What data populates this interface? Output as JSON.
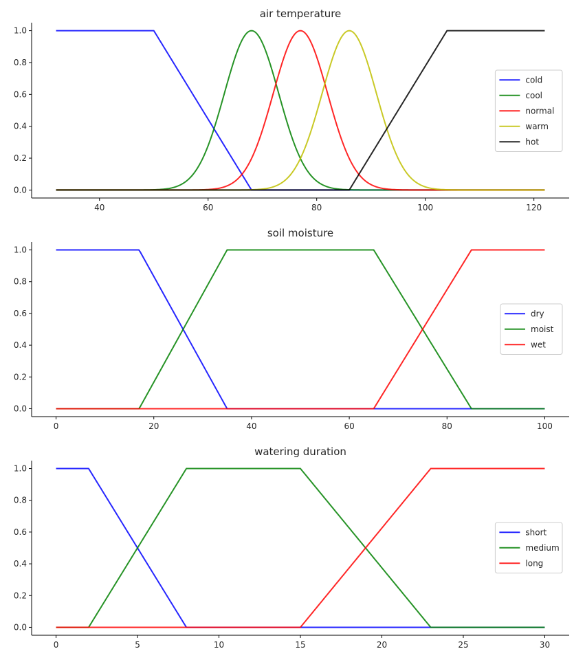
{
  "chart_data": [
    {
      "type": "line",
      "title": "air temperature",
      "xlabel": "",
      "ylabel": "",
      "xlim": [
        27.5,
        126.5
      ],
      "ylim": [
        -0.05,
        1.05
      ],
      "xticks": [
        40,
        60,
        80,
        100,
        120
      ],
      "yticks": [
        0.0,
        0.2,
        0.4,
        0.6,
        0.8,
        1.0
      ],
      "legend_position": "center-right",
      "series": [
        {
          "name": "cold",
          "color": "#0000ff",
          "shape": "trapezoid",
          "params": [
            32,
            32,
            50,
            68
          ],
          "domain": [
            32,
            122
          ]
        },
        {
          "name": "cool",
          "color": "#008000",
          "shape": "gaussian",
          "params": [
            68,
            5
          ],
          "domain": [
            32,
            122
          ]
        },
        {
          "name": "normal",
          "color": "#ff0000",
          "shape": "gaussian",
          "params": [
            77,
            5
          ],
          "domain": [
            32,
            122
          ]
        },
        {
          "name": "warm",
          "color": "#bfbf00",
          "shape": "gaussian",
          "params": [
            86,
            5
          ],
          "domain": [
            32,
            122
          ]
        },
        {
          "name": "hot",
          "color": "#000000",
          "shape": "trapezoid",
          "params": [
            86,
            104,
            122,
            122
          ],
          "domain": [
            32,
            122
          ]
        }
      ]
    },
    {
      "type": "line",
      "title": "soil moisture",
      "xlabel": "",
      "ylabel": "",
      "xlim": [
        -5,
        105
      ],
      "ylim": [
        -0.05,
        1.05
      ],
      "xticks": [
        0,
        20,
        40,
        60,
        80,
        100
      ],
      "yticks": [
        0.0,
        0.2,
        0.4,
        0.6,
        0.8,
        1.0
      ],
      "legend_position": "center-right",
      "series": [
        {
          "name": "dry",
          "color": "#0000ff",
          "shape": "trapezoid",
          "params": [
            0,
            0,
            17,
            35
          ],
          "domain": [
            0,
            100
          ]
        },
        {
          "name": "moist",
          "color": "#008000",
          "shape": "trapezoid",
          "params": [
            17,
            35,
            65,
            85
          ],
          "domain": [
            0,
            100
          ]
        },
        {
          "name": "wet",
          "color": "#ff0000",
          "shape": "trapezoid",
          "params": [
            65,
            85,
            100,
            100
          ],
          "domain": [
            0,
            100
          ]
        }
      ]
    },
    {
      "type": "line",
      "title": "watering duration",
      "xlabel": "",
      "ylabel": "",
      "xlim": [
        -1.5,
        31.5
      ],
      "ylim": [
        -0.05,
        1.05
      ],
      "xticks": [
        0,
        5,
        10,
        15,
        20,
        25,
        30
      ],
      "yticks": [
        0.0,
        0.2,
        0.4,
        0.6,
        0.8,
        1.0
      ],
      "legend_position": "center-right",
      "series": [
        {
          "name": "short",
          "color": "#0000ff",
          "shape": "trapezoid",
          "params": [
            0,
            0,
            2,
            8
          ],
          "domain": [
            0,
            30
          ]
        },
        {
          "name": "medium",
          "color": "#008000",
          "shape": "trapezoid",
          "params": [
            2,
            8,
            15,
            23
          ],
          "domain": [
            0,
            30
          ]
        },
        {
          "name": "long",
          "color": "#ff0000",
          "shape": "trapezoid",
          "params": [
            15,
            23,
            30,
            30
          ],
          "domain": [
            0,
            30
          ]
        }
      ]
    }
  ]
}
